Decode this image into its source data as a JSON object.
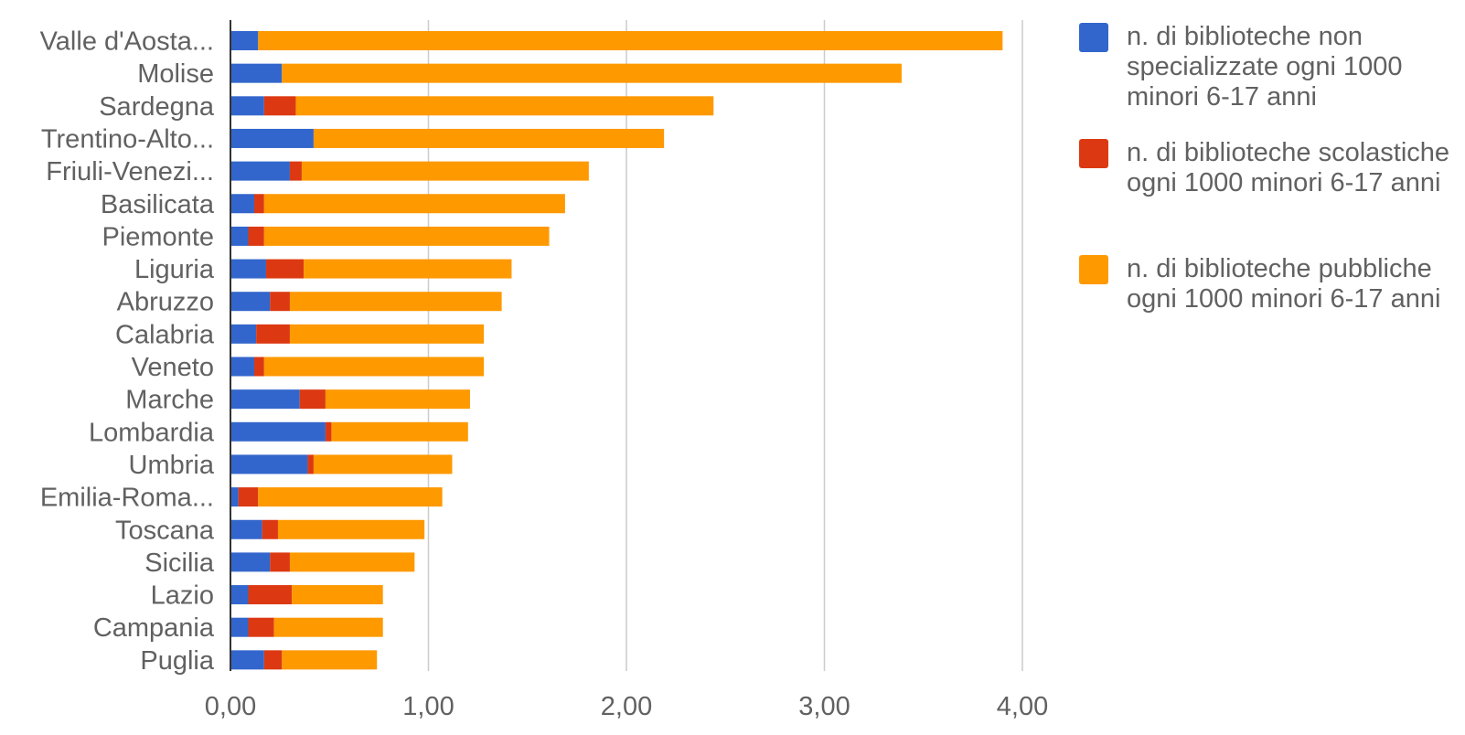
{
  "chart_data": {
    "type": "bar",
    "orientation": "horizontal",
    "stacked": true,
    "categories": [
      "Valle d'Aosta...",
      "Molise",
      "Sardegna",
      "Trentino-Alto...",
      "Friuli-Venezi...",
      "Basilicata",
      "Piemonte",
      "Liguria",
      "Abruzzo",
      "Calabria",
      "Veneto",
      "Marche",
      "Lombardia",
      "Umbria",
      "Emilia-Roma...",
      "Toscana",
      "Sicilia",
      "Lazio",
      "Campania",
      "Puglia"
    ],
    "series": [
      {
        "name": "n. di biblioteche non specializzate ogni 1000 minori 6-17 anni",
        "color": "#3366cc",
        "values": [
          0.14,
          0.26,
          0.17,
          0.42,
          0.3,
          0.12,
          0.09,
          0.18,
          0.2,
          0.13,
          0.12,
          0.35,
          0.48,
          0.39,
          0.04,
          0.16,
          0.2,
          0.09,
          0.09,
          0.17
        ]
      },
      {
        "name": "n. di biblioteche scolastiche ogni 1000 minori 6-17 anni",
        "color": "#dc3912",
        "values": [
          0.0,
          0.0,
          0.16,
          0.0,
          0.06,
          0.05,
          0.08,
          0.19,
          0.1,
          0.17,
          0.05,
          0.13,
          0.03,
          0.03,
          0.1,
          0.08,
          0.1,
          0.22,
          0.13,
          0.09
        ]
      },
      {
        "name": "n. di biblioteche pubbliche ogni 1000 minori 6-17 anni",
        "color": "#ff9900",
        "values": [
          3.76,
          3.13,
          2.11,
          1.77,
          1.45,
          1.52,
          1.44,
          1.05,
          1.07,
          0.98,
          1.11,
          0.73,
          0.69,
          0.7,
          0.93,
          0.74,
          0.63,
          0.46,
          0.55,
          0.48
        ]
      }
    ],
    "xlim": [
      0,
      4
    ],
    "xticks": [
      "0,00",
      "1,00",
      "2,00",
      "3,00",
      "4,00"
    ],
    "grid": true,
    "legend_position": "right",
    "title": "",
    "xlabel": "",
    "ylabel": ""
  }
}
